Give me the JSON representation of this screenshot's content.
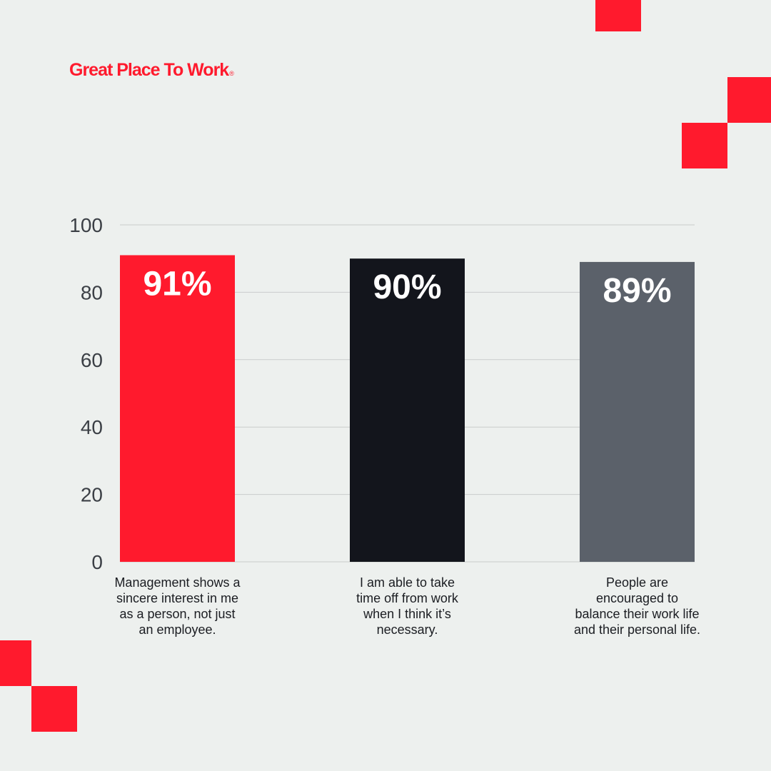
{
  "brand": {
    "name": "Great Place To Work",
    "mark": "®",
    "color": "#ff1a2d"
  },
  "colors": {
    "background": "#edf0ee",
    "grid": "#c9cccb",
    "axis_text": "#3b3f45",
    "value_label": "#ffffff"
  },
  "chart_data": {
    "type": "bar",
    "categories": [
      "Management shows a sincere interest in me as a person, not just an employee.",
      "I am able to take time off from work when I think it’s necessary.",
      "People are encouraged to balance their work life and their personal life."
    ],
    "category_lines": [
      [
        "Management shows a",
        "sincere interest in me",
        "as a person, not just",
        "an employee."
      ],
      [
        "I am able to take",
        "time off from work",
        "when I think it’s",
        "necessary."
      ],
      [
        "People are",
        "encouraged to",
        "balance their work life",
        "and their personal life."
      ]
    ],
    "values": [
      91,
      90,
      89
    ],
    "value_labels": [
      "91%",
      "90%",
      "89%"
    ],
    "bar_colors": [
      "#ff1a2d",
      "#13151c",
      "#5b616a"
    ],
    "ylim": [
      0,
      100
    ],
    "yticks": [
      0,
      20,
      40,
      60,
      80,
      100
    ],
    "grid": true,
    "xlabel": "",
    "ylabel": ""
  }
}
